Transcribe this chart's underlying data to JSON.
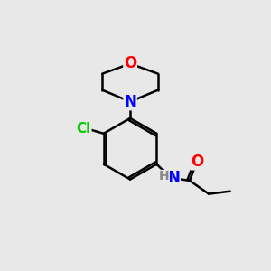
{
  "bg_color": "#e8e8e8",
  "bond_color": "#000000",
  "bond_width": 1.8,
  "atom_colors": {
    "O": "#ff0000",
    "N": "#0000ff",
    "Cl": "#00cc00",
    "C": "#000000",
    "H": "#888888"
  },
  "font_size": 11,
  "figsize": [
    3.0,
    3.0
  ],
  "dpi": 100,
  "xlim": [
    0,
    10
  ],
  "ylim": [
    0,
    10
  ]
}
